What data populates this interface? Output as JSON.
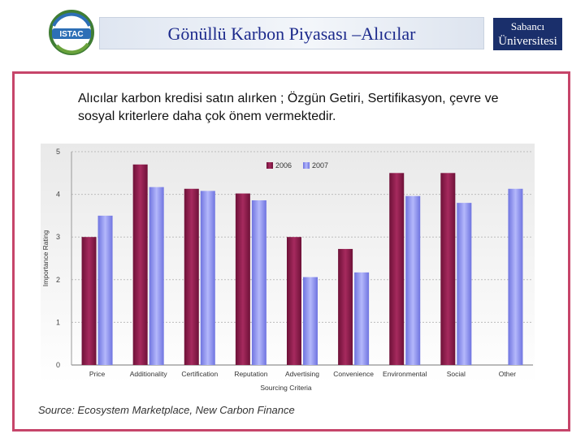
{
  "header": {
    "title": "Gönüllü Karbon Piyasası –Alıcılar",
    "left_logo_text": "ISTAC",
    "right_logo_line1": "Sabancı",
    "right_logo_line2": "Üniversitesi"
  },
  "subtitle": "Alıcılar karbon kredisi satın alırken ; Özgün Getiri, Sertifikasyon, çevre ve sosyal kriterlere daha çok önem vermektedir.",
  "source": "Source: Ecosystem Marketplace, New Carbon Finance",
  "colors": {
    "series_2006": "#8b1a4c",
    "series_2007": "#8a8ff0",
    "frame": "#c6456a"
  },
  "chart_data": {
    "type": "bar",
    "categories": [
      "Price",
      "Additionality",
      "Certification",
      "Reputation",
      "Advertising",
      "Convenience",
      "Environmental",
      "Social",
      "Other"
    ],
    "series": [
      {
        "name": "2006",
        "values": [
          3.0,
          4.7,
          4.13,
          4.02,
          3.0,
          2.72,
          4.5,
          4.5,
          null
        ]
      },
      {
        "name": "2007",
        "values": [
          3.5,
          4.17,
          4.08,
          3.86,
          2.06,
          2.17,
          3.96,
          3.8,
          4.13
        ]
      }
    ],
    "xlabel": "Sourcing Criteria",
    "ylabel": "Importance Rating",
    "ylim": [
      0,
      5
    ],
    "yticks": [
      "0",
      "1",
      "2",
      "3",
      "4",
      "5"
    ],
    "grid": true,
    "legend": "top-center"
  }
}
